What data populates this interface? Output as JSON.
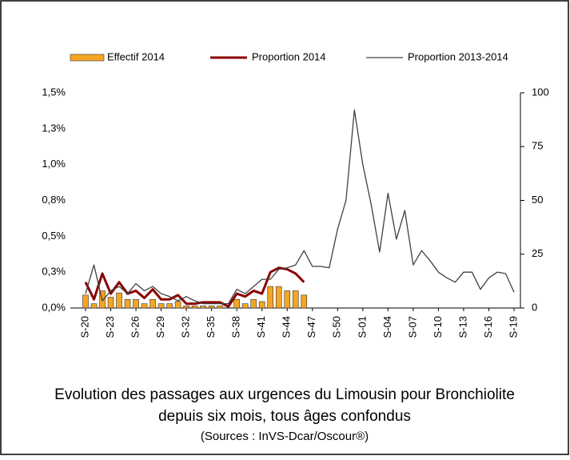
{
  "chart_data": {
    "type": "bar-line",
    "title": "Evolution des passages aux urgences  du Limousin pour Bronchiolite",
    "subtitle": "depuis six mois, tous âges confondus",
    "source": "(Sources : InVS-Dcar/Oscour®)",
    "categories": [
      "S-20",
      null,
      null,
      "S-23",
      null,
      null,
      "S-26",
      null,
      null,
      "S-29",
      null,
      null,
      "S-32",
      null,
      null,
      "S-35",
      null,
      null,
      "S-38",
      null,
      null,
      "S-41",
      null,
      null,
      "S-44",
      null,
      null,
      "S-47",
      null,
      null,
      "S-50",
      null,
      null,
      "S-01",
      null,
      null,
      "S-04",
      null,
      null,
      "S-07",
      null,
      null,
      "S-10",
      null,
      null,
      "S-13",
      null,
      null,
      "S-16",
      null,
      null,
      "S-19"
    ],
    "series": [
      {
        "name": "Effectif 2014",
        "color": "#f5a623",
        "axis": "y2",
        "kind": "bar",
        "values": [
          6,
          2,
          8,
          5,
          7,
          4,
          4,
          2,
          4,
          2,
          2,
          3,
          1,
          1,
          1,
          1,
          1,
          0,
          4,
          2,
          4,
          3,
          10,
          10,
          8,
          8,
          6,
          null,
          null,
          null,
          null,
          null,
          null,
          null,
          null,
          null,
          null,
          null,
          null,
          null,
          null,
          null,
          null,
          null,
          null,
          null,
          null,
          null,
          null,
          null,
          null,
          null
        ]
      },
      {
        "name": "Proportion 2014",
        "color": "#8b0000",
        "kind": "line",
        "values": [
          0.18,
          0.06,
          0.24,
          0.1,
          0.18,
          0.1,
          0.12,
          0.07,
          0.13,
          0.06,
          0.06,
          0.09,
          0.03,
          0.03,
          0.04,
          0.04,
          0.04,
          0.01,
          0.1,
          0.08,
          0.12,
          0.1,
          0.25,
          0.28,
          0.27,
          0.24,
          0.18,
          null,
          null,
          null,
          null,
          null,
          null,
          null,
          null,
          null,
          null,
          null,
          null,
          null,
          null,
          null,
          null,
          null,
          null,
          null,
          null,
          null,
          null,
          null,
          null,
          null
        ]
      },
      {
        "name": "Proportion 2013-2014",
        "color": "#404040",
        "kind": "line",
        "values": [
          0.1,
          0.3,
          0.05,
          0.12,
          0.15,
          0.1,
          0.17,
          0.12,
          0.15,
          0.1,
          0.08,
          0.05,
          0.08,
          0.05,
          0.03,
          0.03,
          0.03,
          0.03,
          0.13,
          0.1,
          0.15,
          0.2,
          0.2,
          0.27,
          0.28,
          0.3,
          0.4,
          0.29,
          0.29,
          0.28,
          0.55,
          0.75,
          1.38,
          1.0,
          0.72,
          0.39,
          0.8,
          0.48,
          0.68,
          0.3,
          0.4,
          0.33,
          0.25,
          0.21,
          0.18,
          0.25,
          0.25,
          0.13,
          0.21,
          0.25,
          0.24,
          0.11
        ]
      }
    ],
    "ylim": [
      0,
      1.5
    ],
    "yticks": [
      {
        "value": 0,
        "label": "0,0%"
      },
      {
        "value": 0.25,
        "label": "0,3%"
      },
      {
        "value": 0.5,
        "label": "0,5%"
      },
      {
        "value": 0.75,
        "label": "0,8%"
      },
      {
        "value": 1.0,
        "label": "1,0%"
      },
      {
        "value": 1.25,
        "label": "1,3%"
      },
      {
        "value": 1.5,
        "label": "1,5%"
      }
    ],
    "y2lim": [
      0,
      100
    ],
    "y2ticks": [
      0,
      25,
      50,
      75,
      100
    ]
  }
}
